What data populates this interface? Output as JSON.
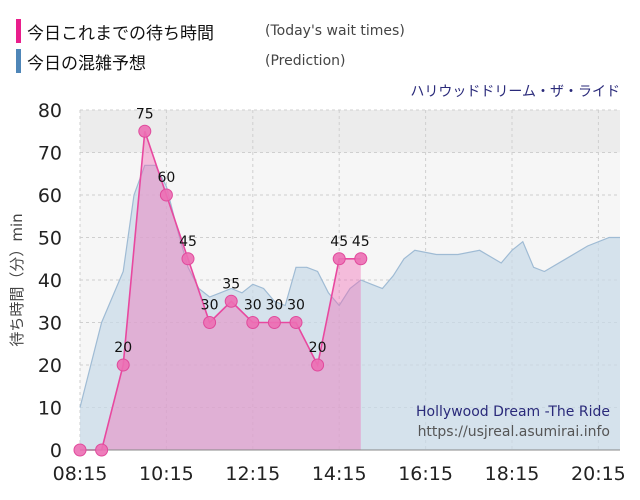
{
  "legend": {
    "today": {
      "label": "今日これまでの待ち時間",
      "sub": "(Today's wait times)",
      "color": "#e91e8c"
    },
    "prediction": {
      "label": "今日の混雑予想",
      "sub": "(Prediction)",
      "color": "#4f86b8"
    }
  },
  "ride_name": "ハリウッドドリーム・ザ・ライド",
  "attribution": {
    "title": "Hollywood Dream -The Ride",
    "url": "https://usjreal.asumirai.info"
  },
  "chart_data": {
    "type": "area",
    "ylabel": "待ち時間（分）min",
    "ylim": [
      0,
      80
    ],
    "yticks": [
      0,
      10,
      20,
      30,
      40,
      50,
      60,
      70,
      80
    ],
    "xlim": [
      "08:15",
      "20:45"
    ],
    "xticks": [
      "08:15",
      "10:15",
      "12:15",
      "14:15",
      "16:15",
      "18:15",
      "20:15"
    ],
    "grid": true,
    "series": [
      {
        "key": "prediction",
        "color": "#4f86b8",
        "points": [
          [
            "08:15",
            10
          ],
          [
            "08:45",
            30
          ],
          [
            "09:15",
            42
          ],
          [
            "09:30",
            60
          ],
          [
            "09:45",
            67
          ],
          [
            "10:00",
            67
          ],
          [
            "10:15",
            62
          ],
          [
            "10:30",
            52
          ],
          [
            "10:45",
            43
          ],
          [
            "11:00",
            38
          ],
          [
            "11:15",
            36
          ],
          [
            "11:30",
            37
          ],
          [
            "11:45",
            38
          ],
          [
            "12:00",
            37
          ],
          [
            "12:15",
            39
          ],
          [
            "12:30",
            38
          ],
          [
            "12:45",
            35
          ],
          [
            "13:00",
            34
          ],
          [
            "13:15",
            43
          ],
          [
            "13:30",
            43
          ],
          [
            "13:45",
            42
          ],
          [
            "14:00",
            37
          ],
          [
            "14:15",
            34
          ],
          [
            "14:30",
            38
          ],
          [
            "14:45",
            40
          ],
          [
            "15:00",
            39
          ],
          [
            "15:15",
            38
          ],
          [
            "15:30",
            41
          ],
          [
            "15:45",
            45
          ],
          [
            "16:00",
            47
          ],
          [
            "16:30",
            46
          ],
          [
            "17:00",
            46
          ],
          [
            "17:30",
            47
          ],
          [
            "18:00",
            44
          ],
          [
            "18:15",
            47
          ],
          [
            "18:30",
            49
          ],
          [
            "18:45",
            43
          ],
          [
            "19:00",
            42
          ],
          [
            "19:30",
            45
          ],
          [
            "20:00",
            48
          ],
          [
            "20:30",
            50
          ],
          [
            "20:45",
            50
          ]
        ]
      },
      {
        "key": "today",
        "color": "#e8489f",
        "points": [
          [
            "08:15",
            0
          ],
          [
            "08:45",
            0
          ],
          [
            "09:15",
            20
          ],
          [
            "09:45",
            75
          ],
          [
            "10:15",
            60
          ],
          [
            "10:45",
            45
          ],
          [
            "11:15",
            30
          ],
          [
            "11:45",
            35
          ],
          [
            "12:15",
            30
          ],
          [
            "12:45",
            30
          ],
          [
            "13:15",
            30
          ],
          [
            "13:45",
            20
          ],
          [
            "14:15",
            45
          ],
          [
            "14:45",
            45
          ]
        ],
        "labels": [
          null,
          null,
          "20",
          "75",
          "60",
          "45",
          "30",
          "35",
          "30",
          "30",
          "30",
          "20",
          "45",
          "45"
        ]
      }
    ]
  }
}
